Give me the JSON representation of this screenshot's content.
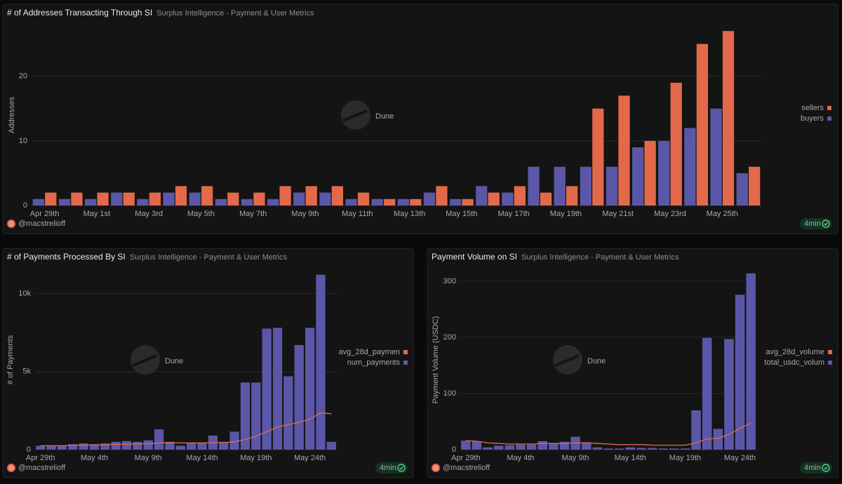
{
  "chart_data": [
    {
      "type": "bar",
      "title": "# of Addresses Transacting Through SI",
      "subtitle": "Surplus Intelligence - Payment & User Metrics",
      "y_label": "Addresses",
      "watermark": "Dune",
      "author": "@macstrelioff",
      "refresh": "4min",
      "categories": [
        "Apr 29th",
        null,
        "May 1st",
        null,
        "May 3rd",
        null,
        "May 5th",
        null,
        "May 7th",
        null,
        "May 9th",
        null,
        "May 11th",
        null,
        "May 13th",
        null,
        "May 15th",
        null,
        "May 17th",
        null,
        "May 19th",
        null,
        "May 21st",
        null,
        "May 23rd",
        null,
        "May 25th",
        null
      ],
      "series": [
        {
          "name": "sellers",
          "type": "bar",
          "color": "#e4694a",
          "values": [
            2,
            2,
            2,
            2,
            2,
            3,
            3,
            2,
            2,
            3,
            3,
            3,
            2,
            1,
            1,
            3,
            1,
            2,
            3,
            2,
            3,
            15,
            17,
            10,
            19,
            25,
            27,
            6
          ]
        },
        {
          "name": "buyers",
          "type": "bar",
          "color": "#5b57a8",
          "values": [
            1,
            1,
            1,
            2,
            1,
            2,
            2,
            1,
            1,
            1,
            2,
            2,
            1,
            1,
            1,
            2,
            1,
            3,
            2,
            6,
            6,
            6,
            6,
            9,
            10,
            12,
            15,
            5
          ]
        }
      ],
      "ylim": [
        0,
        28
      ],
      "yticks": [
        0,
        10,
        20
      ],
      "grid": true
    },
    {
      "type": "bar",
      "title": "# of Payments Processed By SI",
      "subtitle": "Surplus Intelligence - Payment & User Metrics",
      "y_label": "# of Payments",
      "watermark": "Dune",
      "author": "@macstrelioff",
      "refresh": "4min",
      "categories": [
        "Apr 29th",
        null,
        null,
        null,
        null,
        "May 4th",
        null,
        null,
        null,
        null,
        "May 9th",
        null,
        null,
        null,
        null,
        "May 14th",
        null,
        null,
        null,
        null,
        "May 19th",
        null,
        null,
        null,
        null,
        "May 24th",
        null,
        null
      ],
      "series": [
        {
          "name": "avg_28d_paymen",
          "type": "line",
          "color": "#e4694a",
          "values": [
            250,
            250,
            250,
            270,
            290,
            300,
            310,
            330,
            350,
            360,
            380,
            430,
            440,
            430,
            430,
            430,
            450,
            450,
            500,
            650,
            850,
            1150,
            1450,
            1600,
            1750,
            1950,
            2350,
            2300
          ]
        },
        {
          "name": "num_payments",
          "type": "bar",
          "color": "#5b57a8",
          "values": [
            250,
            250,
            250,
            350,
            400,
            350,
            400,
            500,
            550,
            500,
            600,
            1300,
            500,
            250,
            450,
            450,
            900,
            500,
            1150,
            4300,
            4300,
            7750,
            7800,
            4700,
            6700,
            7800,
            11200,
            500
          ]
        }
      ],
      "ylim": [
        0,
        11500
      ],
      "yticks": [
        0,
        {
          "value": 5000,
          "label": "5k"
        },
        {
          "value": 10000,
          "label": "10k"
        }
      ],
      "grid": true
    },
    {
      "type": "bar",
      "title": "Payment Volume on SI",
      "subtitle": "Surplus Intelligence - Payment & User Metrics",
      "y_label": "Payment Volume (USDC)",
      "watermark": "Dune",
      "author": "@macstrelioff",
      "refresh": "4min",
      "categories": [
        "Apr 29th",
        null,
        null,
        null,
        null,
        "May 4th",
        null,
        null,
        null,
        null,
        "May 9th",
        null,
        null,
        null,
        null,
        "May 14th",
        null,
        null,
        null,
        null,
        "May 19th",
        null,
        null,
        null,
        null,
        "May 24th",
        null
      ],
      "series": [
        {
          "name": "avg_28d_volume",
          "type": "line",
          "color": "#e4694a",
          "values": [
            16,
            15,
            12,
            11,
            10,
            10,
            10,
            11,
            11,
            11,
            12,
            12,
            11,
            10,
            9,
            9,
            9,
            8,
            8,
            8,
            8,
            12,
            19,
            20,
            27,
            38,
            47
          ]
        },
        {
          "name": "total_usdc_volum",
          "type": "bar",
          "color": "#5b57a8",
          "values": [
            16,
            15,
            4,
            7,
            8,
            9,
            9,
            15,
            11,
            14,
            23,
            13,
            4,
            2,
            2,
            4,
            3,
            3,
            2,
            2,
            2,
            70,
            199,
            37,
            197,
            276,
            314
          ]
        }
      ],
      "ylim": [
        0,
        320
      ],
      "yticks": [
        0,
        100,
        200,
        300
      ],
      "grid": true
    }
  ]
}
